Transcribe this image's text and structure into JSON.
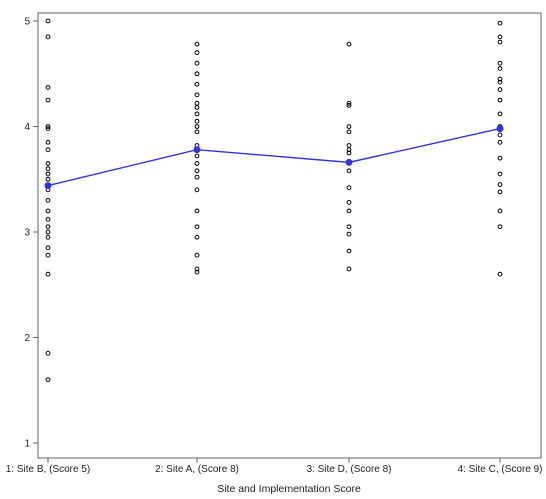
{
  "chart_data": {
    "type": "scatter",
    "title": "",
    "xlabel": "Site and Implementation Score",
    "ylabel": "",
    "categories": [
      "1: Site B, (Score 5)",
      "2: Site A, (Score 8)",
      "3: Site D, (Score 8)",
      "4: Site C, (Score 9)"
    ],
    "ylim": [
      1,
      5
    ],
    "yticks": [
      1,
      2,
      3,
      4,
      5
    ],
    "grid": false,
    "legend": "none",
    "series": [
      {
        "kind": "scatter",
        "marker": "open-circle",
        "color": "#000000",
        "points": [
          {
            "x": "1: Site B, (Score 5)",
            "y": [
              5.0,
              4.85,
              4.37,
              4.25,
              4.0,
              3.98,
              3.85,
              3.78,
              3.65,
              3.6,
              3.55,
              3.5,
              3.44,
              3.4,
              3.3,
              3.2,
              3.12,
              3.05,
              3.0,
              2.95,
              2.85,
              2.78,
              2.6,
              1.85,
              1.6
            ]
          },
          {
            "x": "2: Site A, (Score 8)",
            "y": [
              4.78,
              4.7,
              4.6,
              4.5,
              4.4,
              4.3,
              4.22,
              4.18,
              4.12,
              4.05,
              4.0,
              3.95,
              3.82,
              3.78,
              3.72,
              3.65,
              3.58,
              3.52,
              3.4,
              3.2,
              3.05,
              2.95,
              2.78,
              2.65,
              2.62
            ]
          },
          {
            "x": "3: Site D, (Score 8)",
            "y": [
              4.78,
              4.22,
              4.2,
              4.0,
              3.95,
              3.82,
              3.78,
              3.75,
              3.58,
              3.42,
              3.28,
              3.2,
              3.05,
              2.98,
              2.82,
              2.65
            ]
          },
          {
            "x": "4: Site C, (Score 9)",
            "y": [
              4.98,
              4.85,
              4.8,
              4.6,
              4.55,
              4.45,
              4.42,
              4.35,
              4.25,
              4.12,
              4.0,
              3.92,
              3.85,
              3.7,
              3.55,
              3.45,
              3.38,
              3.2,
              3.05,
              2.6
            ]
          }
        ]
      },
      {
        "kind": "line",
        "marker": "filled-circle",
        "color": "#3333dd",
        "values": [
          3.44,
          3.78,
          3.66,
          3.98
        ]
      }
    ]
  }
}
